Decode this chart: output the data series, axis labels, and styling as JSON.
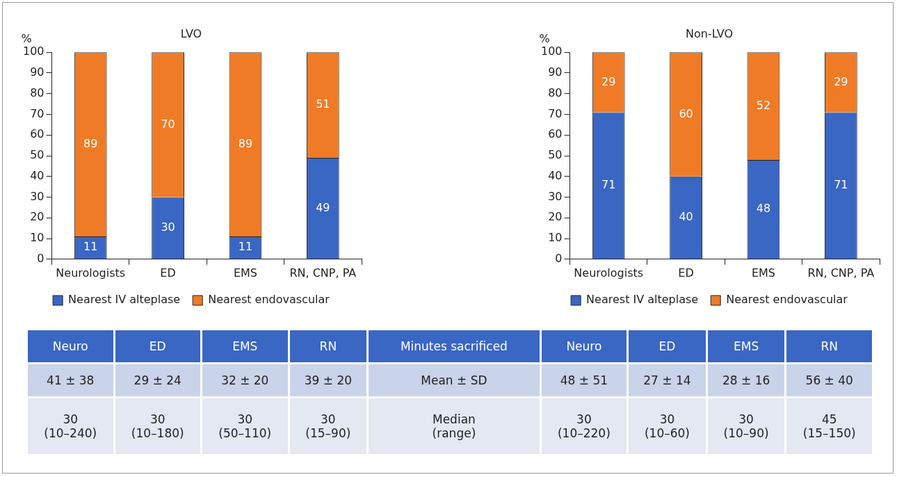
{
  "chart_data": [
    {
      "type": "bar",
      "title": "LVO",
      "ylabel": "%",
      "categories": [
        "Neurologists",
        "ED",
        "EMS",
        "RN, CNP, PA"
      ],
      "stacked": true,
      "ylim": [
        0,
        100
      ],
      "yticks": [
        0,
        10,
        20,
        30,
        40,
        50,
        60,
        70,
        80,
        90,
        100
      ],
      "grid": false,
      "legend": "bottom",
      "data_labels": true,
      "series": [
        {
          "name": "Nearest IV alteplase",
          "color": "#3a66c4",
          "values": [
            11,
            30,
            11,
            49
          ]
        },
        {
          "name": "Nearest endovascular",
          "color": "#f07b27",
          "values": [
            89,
            70,
            89,
            51
          ]
        }
      ]
    },
    {
      "type": "bar",
      "title": "Non-LVO",
      "ylabel": "%",
      "categories": [
        "Neurologists",
        "ED",
        "EMS",
        "RN, CNP, PA"
      ],
      "stacked": true,
      "ylim": [
        0,
        100
      ],
      "yticks": [
        0,
        10,
        20,
        30,
        40,
        50,
        60,
        70,
        80,
        90,
        100
      ],
      "grid": false,
      "legend": "bottom",
      "data_labels": true,
      "series": [
        {
          "name": "Nearest IV alteplase",
          "color": "#3a66c4",
          "values": [
            71,
            40,
            48,
            71
          ]
        },
        {
          "name": "Nearest endovascular",
          "color": "#f07b27",
          "values": [
            29,
            60,
            52,
            29
          ]
        }
      ]
    },
    {
      "type": "other",
      "categories": [
        "Neuro",
        "ED",
        "EMS",
        "RN",
        "Minutes sacrificed",
        "Neuro",
        "ED",
        "EMS",
        "RN"
      ],
      "annotations": [
        "41 ± 38",
        "29 ± 24",
        "32 ± 20",
        "39 ± 20",
        "Mean ± SD",
        "48 ± 51",
        "27 ± 14",
        "28 ± 16",
        "56 ± 40",
        "30\n(10–240)",
        "30\n(10–180)",
        "30\n(50–110)",
        "30\n(15–90)",
        "Median\n(range)",
        "30\n(10–220)",
        "30\n(10–60)",
        "30\n(10–90)",
        "45\n(15–150)"
      ]
    }
  ]
}
